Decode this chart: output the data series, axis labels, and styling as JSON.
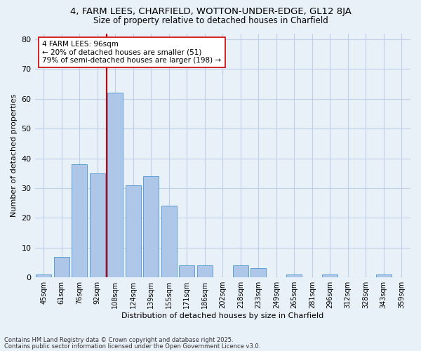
{
  "title1": "4, FARM LEES, CHARFIELD, WOTTON-UNDER-EDGE, GL12 8JA",
  "title2": "Size of property relative to detached houses in Charfield",
  "xlabel": "Distribution of detached houses by size in Charfield",
  "ylabel": "Number of detached properties",
  "categories": [
    "45sqm",
    "61sqm",
    "76sqm",
    "92sqm",
    "108sqm",
    "124sqm",
    "139sqm",
    "155sqm",
    "171sqm",
    "186sqm",
    "202sqm",
    "218sqm",
    "233sqm",
    "249sqm",
    "265sqm",
    "281sqm",
    "296sqm",
    "312sqm",
    "328sqm",
    "343sqm",
    "359sqm"
  ],
  "values": [
    1,
    7,
    38,
    35,
    62,
    31,
    34,
    24,
    4,
    4,
    0,
    4,
    3,
    0,
    1,
    0,
    1,
    0,
    0,
    1,
    0
  ],
  "bar_color": "#aec6e8",
  "bar_edge_color": "#5a9fd4",
  "grid_color": "#c0d0e8",
  "background_color": "#e8f0f8",
  "vline_x": 3.5,
  "vline_color": "#cc0000",
  "annotation_text": "4 FARM LEES: 96sqm\n← 20% of detached houses are smaller (51)\n79% of semi-detached houses are larger (198) →",
  "annotation_box_color": "#ffffff",
  "annotation_box_edge": "#cc0000",
  "footnote1": "Contains HM Land Registry data © Crown copyright and database right 2025.",
  "footnote2": "Contains public sector information licensed under the Open Government Licence v3.0.",
  "ylim": [
    0,
    82
  ],
  "yticks": [
    0,
    10,
    20,
    30,
    40,
    50,
    60,
    70,
    80
  ]
}
